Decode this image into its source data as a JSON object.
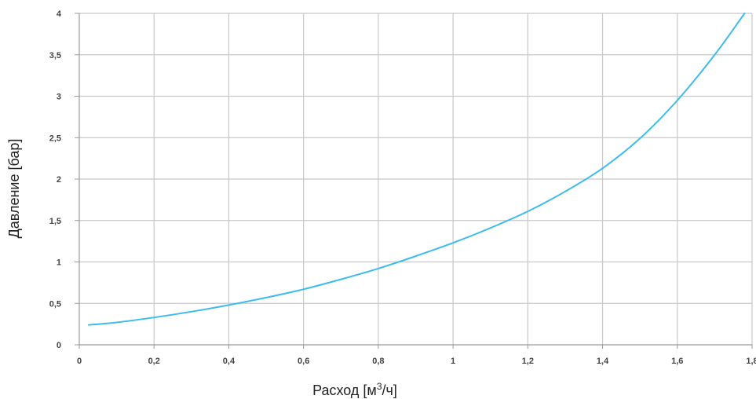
{
  "chart_data": {
    "type": "line",
    "xlabel_parts": {
      "before": "Расход [м",
      "sup": "3",
      "after": "/ч]"
    },
    "ylabel": "Давление [бар]",
    "xlim": [
      0,
      1.8
    ],
    "ylim": [
      0,
      4
    ],
    "x_ticks": [
      {
        "value": 0,
        "label": "0"
      },
      {
        "value": 0.2,
        "label": "0,2"
      },
      {
        "value": 0.4,
        "label": "0,4"
      },
      {
        "value": 0.6,
        "label": "0,6"
      },
      {
        "value": 0.8,
        "label": "0,8"
      },
      {
        "value": 1,
        "label": "1"
      },
      {
        "value": 1.2,
        "label": "1,2"
      },
      {
        "value": 1.4,
        "label": "1,4"
      },
      {
        "value": 1.6,
        "label": "1,6"
      },
      {
        "value": 1.8,
        "label": "1,8"
      }
    ],
    "y_ticks": [
      {
        "value": 0,
        "label": "0"
      },
      {
        "value": 0.5,
        "label": "0,5"
      },
      {
        "value": 1,
        "label": "1"
      },
      {
        "value": 1.5,
        "label": "1,5"
      },
      {
        "value": 2,
        "label": "2"
      },
      {
        "value": 2.5,
        "label": "2,5"
      },
      {
        "value": 3,
        "label": "3"
      },
      {
        "value": 3.5,
        "label": "3,5"
      },
      {
        "value": 4,
        "label": "4"
      }
    ],
    "grid": true,
    "series": [
      {
        "color": "#3cbcec",
        "points": [
          [
            0.025,
            0.24
          ],
          [
            0.1,
            0.27
          ],
          [
            0.2,
            0.33
          ],
          [
            0.3,
            0.4
          ],
          [
            0.4,
            0.48
          ],
          [
            0.5,
            0.57
          ],
          [
            0.6,
            0.67
          ],
          [
            0.7,
            0.79
          ],
          [
            0.8,
            0.92
          ],
          [
            0.9,
            1.07
          ],
          [
            1.0,
            1.23
          ],
          [
            1.1,
            1.41
          ],
          [
            1.2,
            1.61
          ],
          [
            1.3,
            1.85
          ],
          [
            1.4,
            2.13
          ],
          [
            1.5,
            2.49
          ],
          [
            1.6,
            2.95
          ],
          [
            1.7,
            3.5
          ],
          [
            1.78,
            4.0
          ]
        ]
      }
    ]
  }
}
